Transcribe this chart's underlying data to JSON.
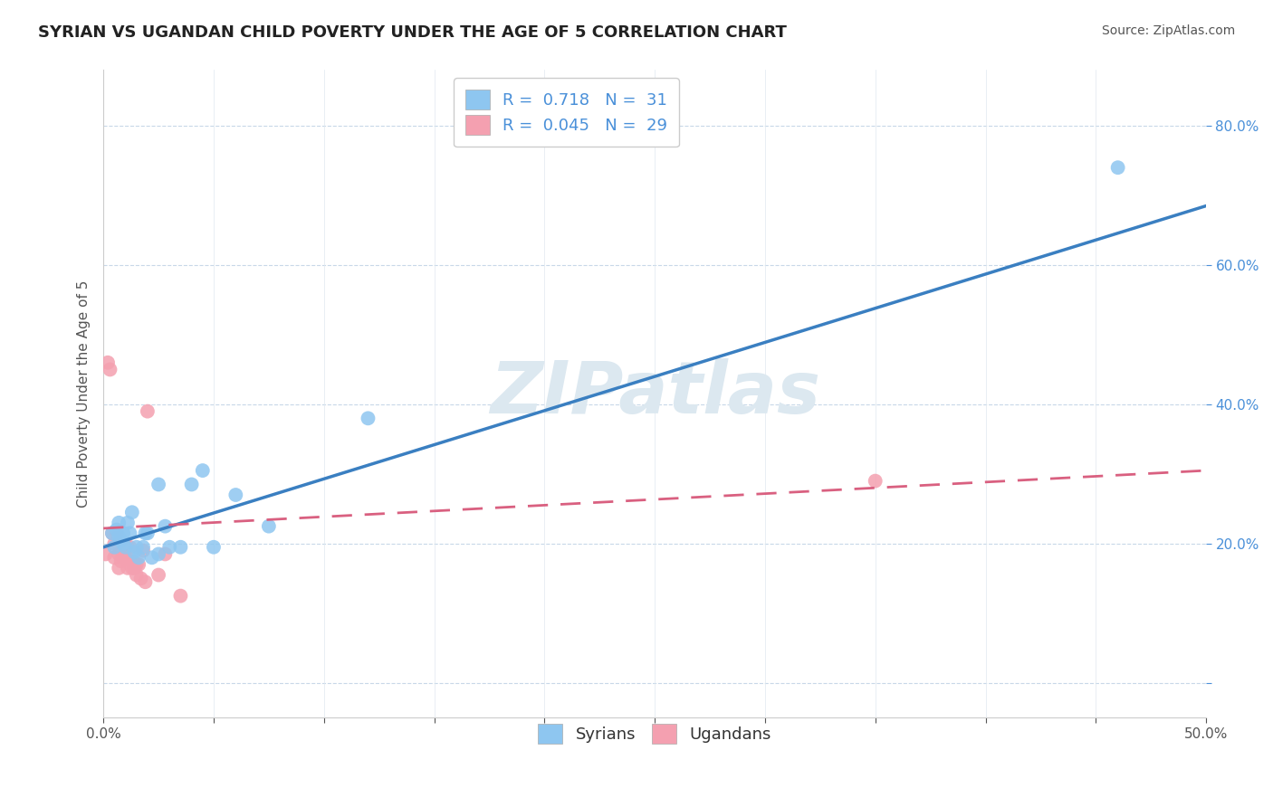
{
  "title": "SYRIAN VS UGANDAN CHILD POVERTY UNDER THE AGE OF 5 CORRELATION CHART",
  "source": "Source: ZipAtlas.com",
  "ylabel": "Child Poverty Under the Age of 5",
  "xlim": [
    0,
    0.5
  ],
  "ylim": [
    -0.05,
    0.88
  ],
  "yticks": [
    0.0,
    0.2,
    0.4,
    0.6,
    0.8
  ],
  "ytick_labels": [
    "",
    "20.0%",
    "40.0%",
    "60.0%",
    "80.0%"
  ],
  "xticks": [
    0.0,
    0.05,
    0.1,
    0.15,
    0.2,
    0.25,
    0.3,
    0.35,
    0.4,
    0.45,
    0.5
  ],
  "syrian_color": "#8ec6f0",
  "ugandan_color": "#f4a0b0",
  "syrian_line_color": "#3a7fc1",
  "ugandan_line_color": "#d96080",
  "R_syrian": 0.718,
  "N_syrian": 31,
  "R_ugandan": 0.045,
  "N_ugandan": 29,
  "watermark": "ZIPatlas",
  "watermark_color": "#dce8f0",
  "background_color": "#ffffff",
  "grid_color": "#c8d8e8",
  "syrian_line_x": [
    0.0,
    0.5
  ],
  "syrian_line_y": [
    0.195,
    0.685
  ],
  "ugandan_line_x": [
    0.0,
    0.5
  ],
  "ugandan_line_y": [
    0.222,
    0.305
  ],
  "syrian_x": [
    0.004,
    0.005,
    0.006,
    0.007,
    0.007,
    0.008,
    0.009,
    0.009,
    0.01,
    0.011,
    0.012,
    0.013,
    0.014,
    0.015,
    0.016,
    0.018,
    0.019,
    0.02,
    0.022,
    0.025,
    0.025,
    0.028,
    0.03,
    0.035,
    0.04,
    0.045,
    0.05,
    0.06,
    0.075,
    0.12,
    0.46
  ],
  "syrian_y": [
    0.215,
    0.195,
    0.22,
    0.21,
    0.23,
    0.205,
    0.2,
    0.215,
    0.195,
    0.23,
    0.215,
    0.245,
    0.188,
    0.195,
    0.18,
    0.195,
    0.215,
    0.215,
    0.18,
    0.185,
    0.285,
    0.225,
    0.195,
    0.195,
    0.285,
    0.305,
    0.195,
    0.27,
    0.225,
    0.38,
    0.74
  ],
  "ugandan_x": [
    0.001,
    0.002,
    0.003,
    0.004,
    0.005,
    0.005,
    0.006,
    0.007,
    0.007,
    0.008,
    0.009,
    0.01,
    0.011,
    0.011,
    0.012,
    0.013,
    0.013,
    0.014,
    0.015,
    0.015,
    0.016,
    0.017,
    0.018,
    0.019,
    0.02,
    0.025,
    0.028,
    0.035,
    0.35
  ],
  "ugandan_y": [
    0.185,
    0.46,
    0.45,
    0.215,
    0.18,
    0.2,
    0.215,
    0.185,
    0.165,
    0.175,
    0.18,
    0.18,
    0.165,
    0.195,
    0.195,
    0.165,
    0.175,
    0.165,
    0.17,
    0.155,
    0.17,
    0.15,
    0.19,
    0.145,
    0.39,
    0.155,
    0.185,
    0.125,
    0.29
  ],
  "title_fontsize": 13,
  "source_fontsize": 10,
  "axis_label_fontsize": 11,
  "tick_fontsize": 11,
  "legend_fontsize": 13
}
